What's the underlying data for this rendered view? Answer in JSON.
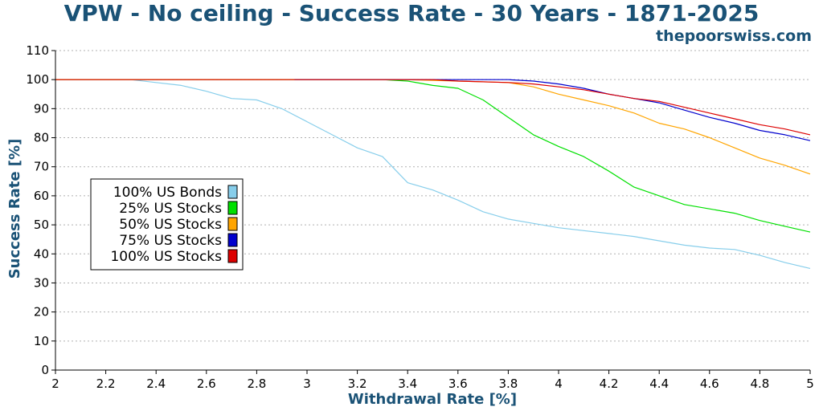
{
  "title": "VPW - No ceiling - Success Rate - 30 Years - 1871-2025",
  "watermark": "thepoorswiss.com",
  "chart_data": {
    "type": "line",
    "title": "VPW - No ceiling - Success Rate - 30 Years - 1871-2025",
    "xlabel": "Withdrawal Rate [%]",
    "ylabel": "Success Rate [%]",
    "xlim": [
      2,
      5
    ],
    "ylim": [
      0,
      110
    ],
    "xticks": [
      "2",
      "2.2",
      "2.4",
      "2.6",
      "2.8",
      "3",
      "3.2",
      "3.4",
      "3.6",
      "3.8",
      "4",
      "4.2",
      "4.4",
      "4.6",
      "4.8",
      "5"
    ],
    "yticks": [
      "0",
      "10",
      "20",
      "30",
      "40",
      "50",
      "60",
      "70",
      "80",
      "90",
      "100",
      "110"
    ],
    "grid": true,
    "legend_position": "center-left",
    "series": [
      {
        "name": "100% US Bonds",
        "color": "#87ceeb",
        "x": [
          2.0,
          2.3,
          2.4,
          2.5,
          2.6,
          2.7,
          2.8,
          2.9,
          3.0,
          3.1,
          3.2,
          3.3,
          3.4,
          3.5,
          3.6,
          3.7,
          3.8,
          3.9,
          4.0,
          4.1,
          4.2,
          4.3,
          4.4,
          4.5,
          4.6,
          4.7,
          4.8,
          4.9,
          5.0
        ],
        "y": [
          100,
          100,
          99,
          98,
          96,
          93.5,
          93,
          90,
          85.5,
          81,
          76.5,
          73.5,
          64.5,
          62,
          58.5,
          54.5,
          52,
          50.5,
          49,
          48,
          47,
          46,
          44.5,
          43,
          42,
          41.5,
          39.5,
          37,
          35
        ]
      },
      {
        "name": "25% US Stocks",
        "color": "#00e000",
        "x": [
          2.0,
          3.3,
          3.4,
          3.5,
          3.6,
          3.7,
          3.8,
          3.9,
          4.0,
          4.1,
          4.2,
          4.3,
          4.4,
          4.5,
          4.6,
          4.7,
          4.8,
          4.9,
          5.0
        ],
        "y": [
          100,
          100,
          99.5,
          98,
          97,
          93,
          87,
          81,
          77,
          73.5,
          68.5,
          63,
          60,
          57,
          55.5,
          54,
          51.5,
          49.5,
          47.5
        ]
      },
      {
        "name": "50% US Stocks",
        "color": "#ffa500",
        "x": [
          2.0,
          3.4,
          3.6,
          3.8,
          3.9,
          4.0,
          4.1,
          4.2,
          4.3,
          4.4,
          4.5,
          4.6,
          4.7,
          4.8,
          4.9,
          5.0
        ],
        "y": [
          100,
          100,
          99.5,
          99,
          97.5,
          95,
          93,
          91,
          88.5,
          85,
          83,
          80,
          76.5,
          73,
          70.5,
          67.5
        ]
      },
      {
        "name": "75% US Stocks",
        "color": "#0000cd",
        "x": [
          2.95,
          3.5,
          3.7,
          3.8,
          3.9,
          4.0,
          4.1,
          4.2,
          4.3,
          4.4,
          4.5,
          4.6,
          4.7,
          4.8,
          4.9,
          5.0
        ],
        "y": [
          100,
          100,
          100,
          100,
          99.5,
          98.5,
          97,
          95,
          93.5,
          92,
          89.5,
          87,
          85,
          82.5,
          81,
          79
        ]
      },
      {
        "name": "100% US Stocks",
        "color": "#dd0000",
        "x": [
          2.0,
          3.5,
          3.6,
          3.8,
          3.9,
          4.0,
          4.1,
          4.2,
          4.3,
          4.4,
          4.5,
          4.6,
          4.7,
          4.8,
          4.9,
          5.0
        ],
        "y": [
          100,
          100,
          99.5,
          99,
          98.5,
          97.5,
          96.5,
          95,
          93.5,
          92.5,
          90.5,
          88.5,
          86.5,
          84.5,
          83,
          81
        ]
      }
    ]
  }
}
